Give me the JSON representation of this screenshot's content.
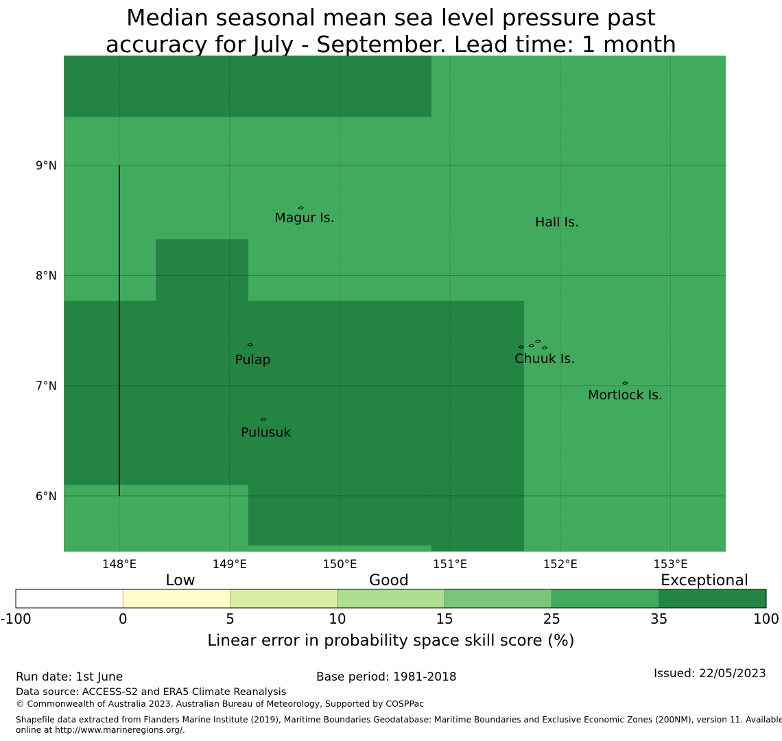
{
  "title_lines": [
    "Median seasonal mean sea level pressure past",
    "accuracy for July - September. Lead time: 1 month"
  ],
  "map": {
    "lon_range": [
      147.5,
      153.5
    ],
    "lat_range": [
      5.5,
      10.0
    ],
    "lon_ticks": [
      148,
      149,
      150,
      151,
      152,
      153
    ],
    "lon_tick_labels": [
      "148°E",
      "149°E",
      "150°E",
      "151°E",
      "152°E",
      "153°E"
    ],
    "lat_ticks": [
      6,
      7,
      8,
      9
    ],
    "lat_tick_labels": [
      "6°N",
      "7°N",
      "8°N",
      "9°N"
    ],
    "background_category": "25-35",
    "cells": [
      {
        "lon": [
          147.5,
          150.83
        ],
        "lat": [
          9.44,
          10.0
        ],
        "category": "35-100"
      },
      {
        "lon": [
          148.33,
          149.17
        ],
        "lat": [
          7.77,
          8.33
        ],
        "category": "35-100"
      },
      {
        "lon": [
          147.5,
          151.67
        ],
        "lat": [
          6.1,
          7.77
        ],
        "category": "35-100"
      },
      {
        "lon": [
          149.17,
          150.83
        ],
        "lat": [
          5.55,
          6.1
        ],
        "category": "35-100"
      },
      {
        "lon": [
          150.83,
          151.67
        ],
        "lat": [
          5.5,
          6.1
        ],
        "category": "35-100"
      }
    ],
    "boundary_line": {
      "lon": 148.0,
      "lat": [
        6.0,
        9.0
      ]
    },
    "place_labels": [
      {
        "name": "Magur Is.",
        "lon": 149.68,
        "lat": 8.53
      },
      {
        "name": "Hall Is.",
        "lon": 151.97,
        "lat": 8.49
      },
      {
        "name": "Pulap",
        "lon": 149.21,
        "lat": 7.24
      },
      {
        "name": "Chuuk Is.",
        "lon": 151.86,
        "lat": 7.25
      },
      {
        "name": "Mortlock Is.",
        "lon": 152.59,
        "lat": 6.92
      },
      {
        "name": "Pulusuk",
        "lon": 149.33,
        "lat": 6.58
      }
    ],
    "islands": [
      {
        "name": "Magur Is.",
        "lon": 149.65,
        "lat": 8.61
      },
      {
        "name": "Pulap",
        "lon": 149.19,
        "lat": 7.37
      },
      {
        "name": "Pulusuk",
        "lon": 149.31,
        "lat": 6.69
      },
      {
        "name": "Chuuk Is.",
        "lon": 151.8,
        "lat": 7.4
      },
      {
        "name": "Chuuk Is.",
        "lon": 151.65,
        "lat": 7.35
      },
      {
        "name": "Chuuk Is.",
        "lon": 151.74,
        "lat": 7.36
      },
      {
        "name": "Chuuk Is.",
        "lon": 151.86,
        "lat": 7.34
      },
      {
        "name": "Mortlock Is.",
        "lon": 152.59,
        "lat": 7.02
      }
    ]
  },
  "legend": {
    "category_labels": [
      "Low",
      "Good",
      "Exceptional"
    ],
    "bounds": [
      "-100",
      "0",
      "5",
      "10",
      "15",
      "25",
      "35",
      "100"
    ],
    "bins": [
      {
        "range": "-100-0",
        "color": "#ffffff"
      },
      {
        "range": "0-5",
        "color": "#ffffcc"
      },
      {
        "range": "5-10",
        "color": "#d9f0a3"
      },
      {
        "range": "10-15",
        "color": "#addd8e"
      },
      {
        "range": "15-25",
        "color": "#78c679"
      },
      {
        "range": "25-35",
        "color": "#41ab5d"
      },
      {
        "range": "35-100",
        "color": "#238443"
      }
    ],
    "axis_label": "Linear error in probability space skill score (%)"
  },
  "footer": {
    "run_date": "Run date: 1st June",
    "base_period": "Base period: 1981-2018",
    "issued": "Issued: 22/05/2023",
    "data_source": "Data source: ACCESS-S2 and ERA5 Climate Reanalysis",
    "copyright": "© Commonwealth of Australia 2023, Australian Bureau of Meteorology, Supported by COSPPac",
    "shapefile_line1": "Shapefile data extracted from Flanders Marine Institute (2019), Maritime Boundaries Geodatabase: Maritime Boundaries and Exclusive Economic Zones (200NM), version 11. Available",
    "shapefile_line2": "online at http://www.marineregions.org/."
  }
}
